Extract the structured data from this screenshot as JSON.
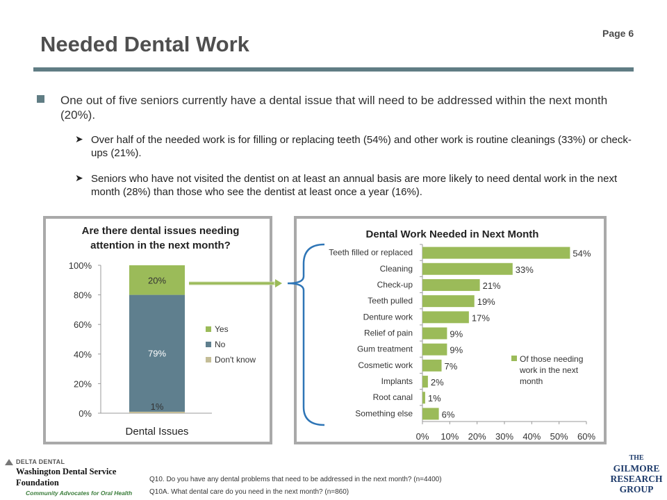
{
  "page_label": "Page 6",
  "title": "Needed Dental Work",
  "bullets": {
    "main": "One out of five seniors currently have a dental issue that will need to be addressed within the next month (20%).",
    "sub": [
      "Over half of the needed work is for filling or replacing teeth (54%) and other work is routine cleanings (33%) or check-ups (21%).",
      "Seniors who have not visited the dentist on at least an annual basis are more likely to need dental work in the next month (28%) than those who see the dentist at least once a year (16%)."
    ],
    "sub_marker": "➤"
  },
  "footer": {
    "q1": "Q10. Do you have any dental problems that need to be addressed in the next month? (n=4400)",
    "q2": "Q10A. What dental care do you need in the next month? (n=860)"
  },
  "logo_left": {
    "line1": "DELTA DENTAL",
    "line2": "Washington Dental Service",
    "line3": "Foundation",
    "line4": "Community Advocates for Oral Health"
  },
  "logo_right": {
    "line1": "THE",
    "line2": "GILMORE",
    "line3": "RESEARCH",
    "line4": "GROUP"
  },
  "colors": {
    "title_rule": "#607d84",
    "yes": "#9bbb59",
    "no": "#5f7f8e",
    "dont_know": "#c4bd97",
    "bar": "#9bbb59",
    "connector": "#2e75b6",
    "arrow": "#9bbb59"
  },
  "chart_data": [
    {
      "type": "bar",
      "stacked": true,
      "title": "Are there dental issues needing attention in the next month?",
      "categories": [
        "Dental Issues"
      ],
      "series": [
        {
          "name": "Don't know",
          "values": [
            1
          ],
          "label": "1%"
        },
        {
          "name": "No",
          "values": [
            79
          ],
          "label": "79%"
        },
        {
          "name": "Yes",
          "values": [
            20
          ],
          "label": "20%"
        }
      ],
      "legend_order": [
        "Yes",
        "No",
        "Don't know"
      ],
      "ylim": [
        0,
        100
      ],
      "yticks": [
        "0%",
        "20%",
        "40%",
        "60%",
        "80%",
        "100%"
      ],
      "xlabel": "Dental Issues",
      "legend": "right"
    },
    {
      "type": "bar",
      "orientation": "horizontal",
      "title": "Dental Work Needed in Next Month",
      "categories": [
        "Teeth filled or replaced",
        "Cleaning",
        "Check-up",
        "Teeth pulled",
        "Denture work",
        "Relief of pain",
        "Gum treatment",
        "Cosmetic work",
        "Implants",
        "Root canal",
        "Something else"
      ],
      "series": [
        {
          "name": "Of those needing work in the next month",
          "values": [
            54,
            33,
            21,
            19,
            17,
            9,
            9,
            7,
            2,
            1,
            6
          ]
        }
      ],
      "data_labels": [
        "54%",
        "33%",
        "21%",
        "19%",
        "17%",
        "9%",
        "9%",
        "7%",
        "2%",
        "1%",
        "6%"
      ],
      "xlim": [
        0,
        60
      ],
      "xticks": [
        "0%",
        "10%",
        "20%",
        "30%",
        "40%",
        "50%",
        "60%"
      ],
      "legend": "right"
    }
  ]
}
